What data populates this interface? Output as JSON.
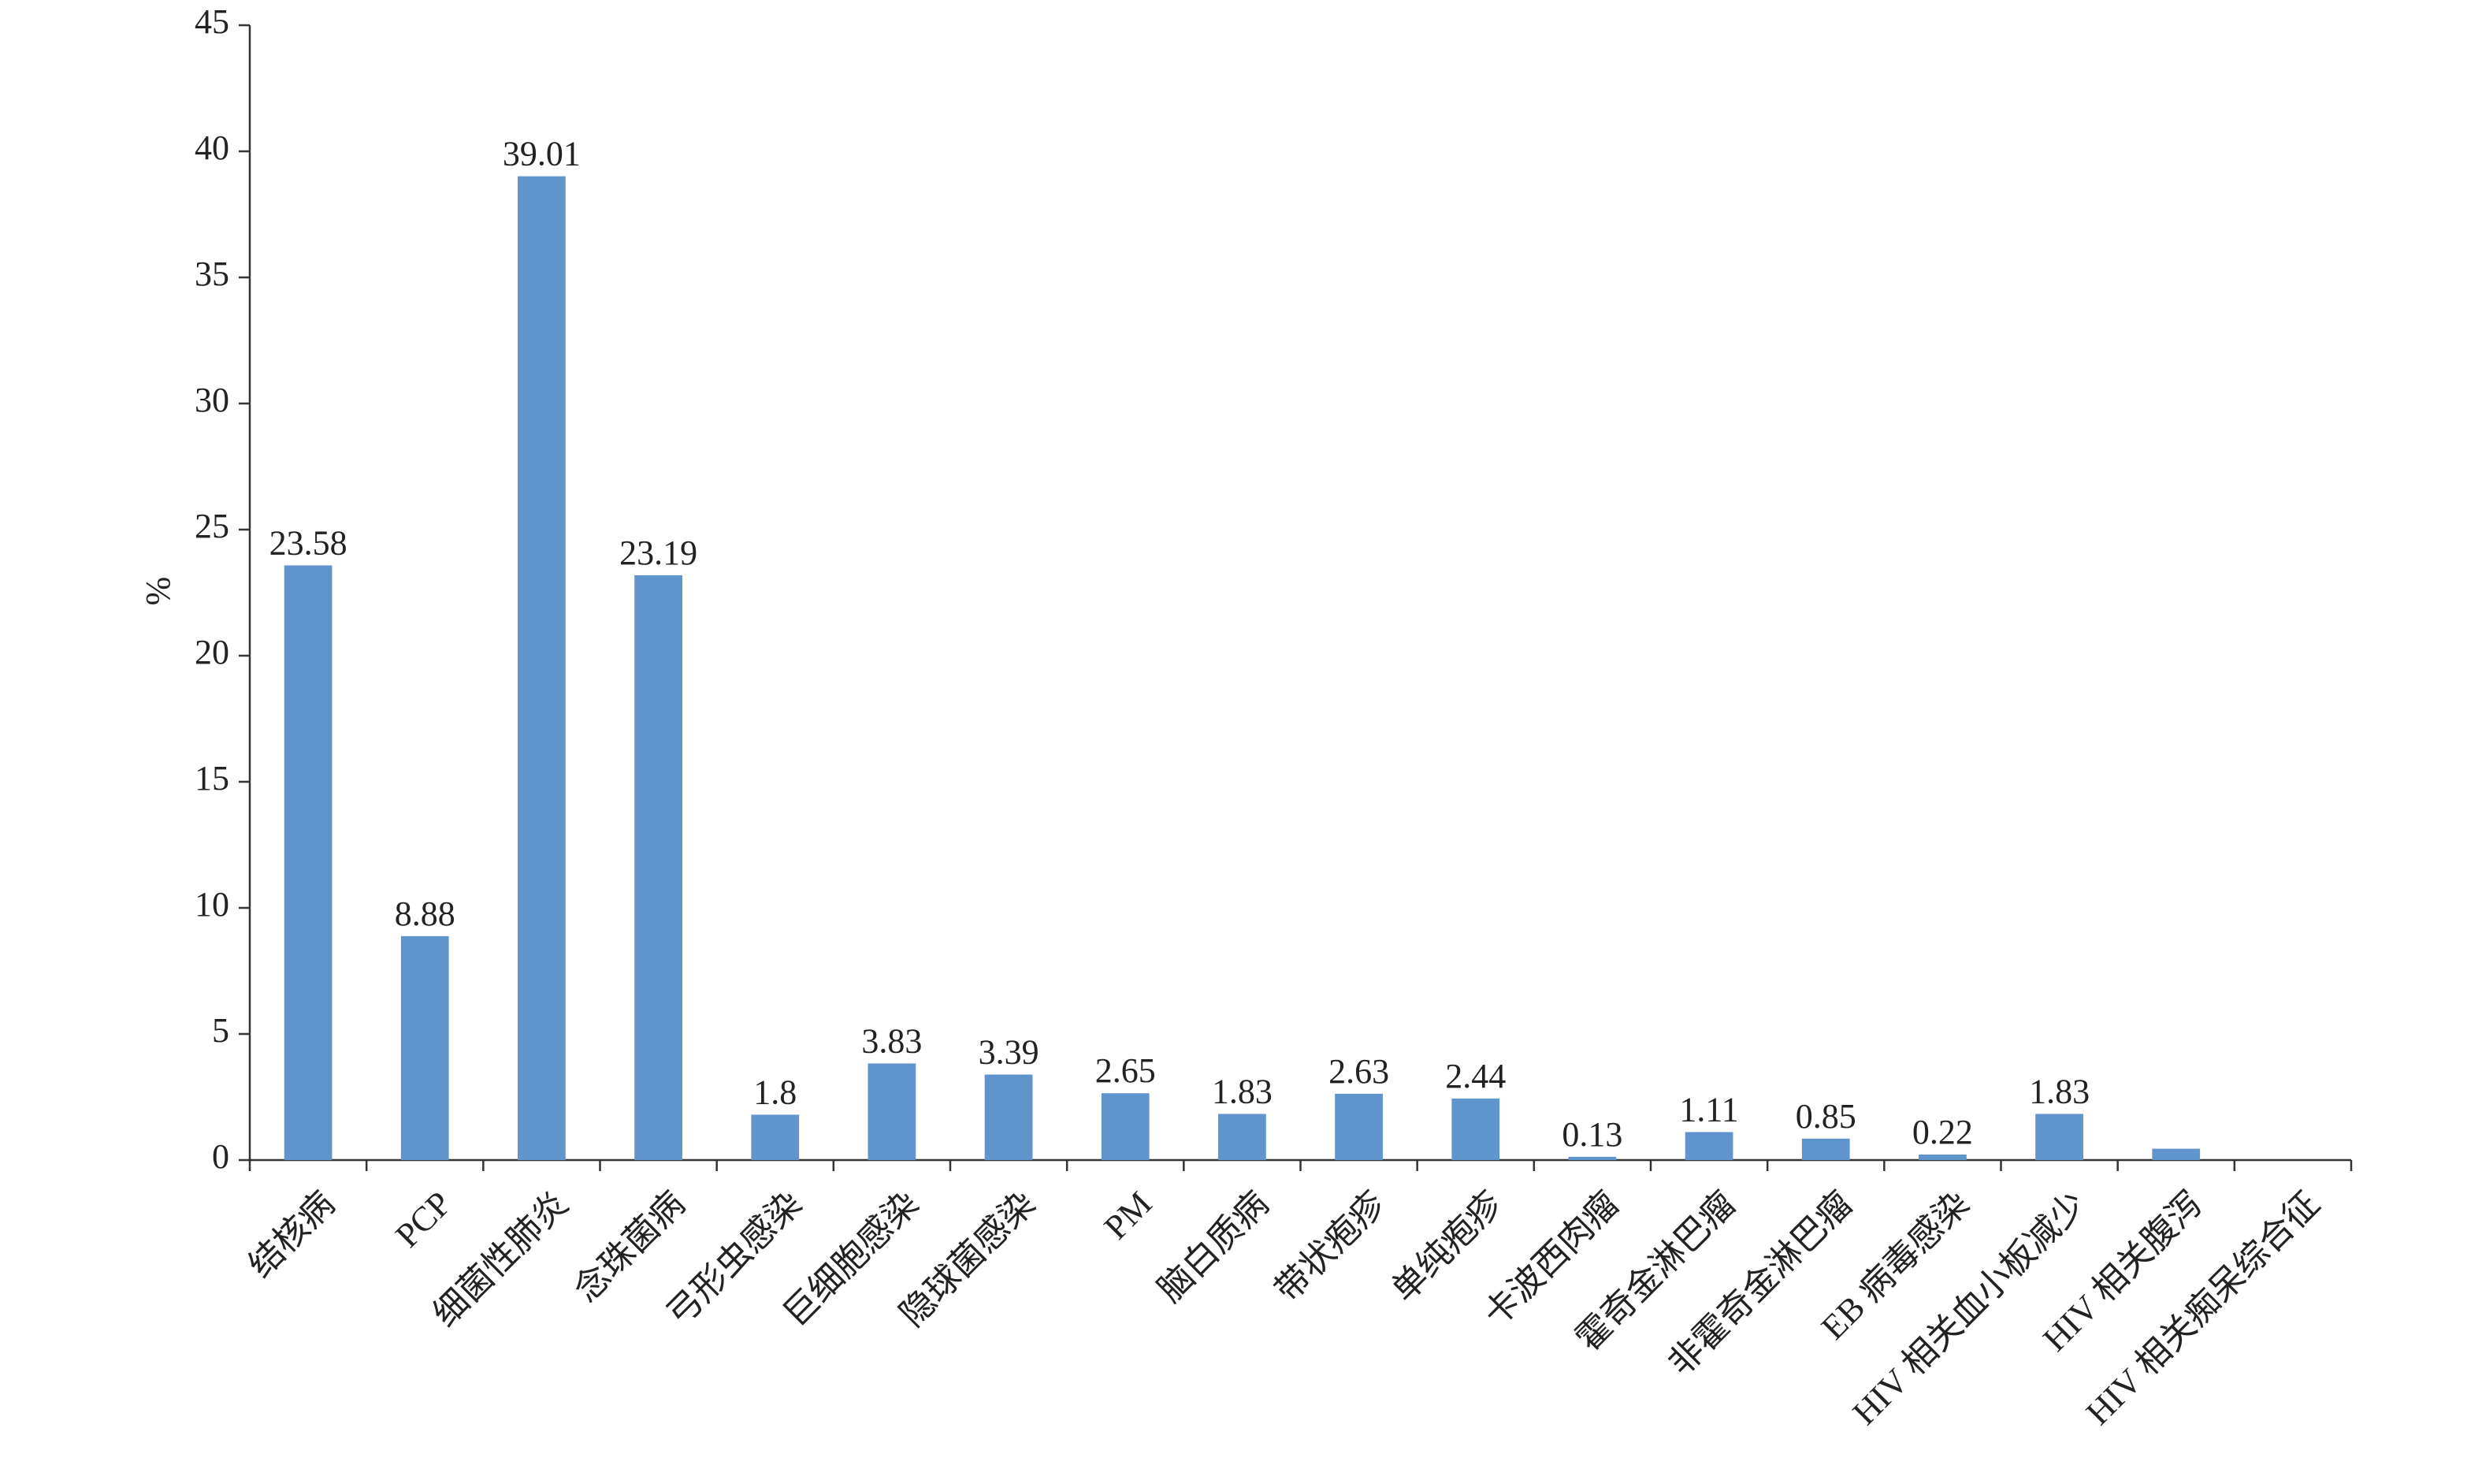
{
  "chart_data": {
    "type": "bar",
    "y_label": "%",
    "categories": [
      "结核病",
      "PCP",
      "细菌性肺炎",
      "念珠菌病",
      "弓形虫感染",
      "巨细胞感染",
      "隐球菌感染",
      "PM",
      "脑白质病",
      "带状疱疹",
      "单纯疱疹",
      "卡波西肉瘤",
      "霍奇金淋巴瘤",
      "非霍奇金淋巴瘤",
      "EB 病毒感染",
      "HIV 相关血小板减少",
      "HIV 相关腹泻",
      "HIV 相关痴呆综合征"
    ],
    "values": [
      23.58,
      8.88,
      39.01,
      23.19,
      1.8,
      3.83,
      3.39,
      2.65,
      1.83,
      2.63,
      2.44,
      0.13,
      1.11,
      0.85,
      0.22,
      1.83,
      0.45,
      0
    ],
    "value_labels": [
      "23.58",
      "8.88",
      "39.01",
      "23.19",
      "1.8",
      "3.83",
      "3.39",
      "2.65",
      "1.83",
      "2.63",
      "2.44",
      "0.13",
      "1.11",
      "0.85",
      "0.22",
      "1.83",
      null,
      null
    ],
    "color": "#6094cd",
    "ylim": [
      0,
      45
    ],
    "yticks": [
      0,
      5,
      10,
      15,
      20,
      25,
      30,
      35,
      40,
      45
    ],
    "grid": false
  }
}
